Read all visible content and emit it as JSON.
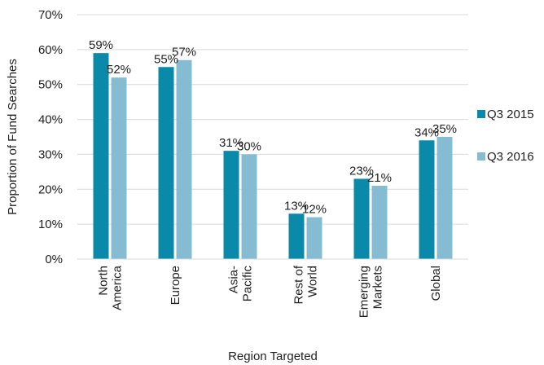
{
  "chart_data": {
    "type": "bar",
    "title": "",
    "xlabel": "Region Targeted",
    "ylabel": "Proportion of Fund Searches",
    "ylim": [
      0,
      70
    ],
    "y_ticks": [
      "0%",
      "10%",
      "20%",
      "30%",
      "40%",
      "50%",
      "60%",
      "70%"
    ],
    "grid": true,
    "legend_position": "right",
    "categories": [
      [
        "North",
        "America"
      ],
      [
        "Europe"
      ],
      [
        "Asia-",
        "Pacific"
      ],
      [
        "Rest of",
        "World"
      ],
      [
        "Emerging",
        "Markets"
      ],
      [
        "Global"
      ]
    ],
    "series": [
      {
        "name": "Q3 2015",
        "color": "#0a8aa8",
        "values": [
          59,
          55,
          31,
          13,
          23,
          34
        ],
        "labels": [
          "59%",
          "55%",
          "31%",
          "13%",
          "23%",
          "34%"
        ]
      },
      {
        "name": "Q3 2016",
        "color": "#86bcd2",
        "values": [
          52,
          57,
          30,
          12,
          21,
          35
        ],
        "labels": [
          "52%",
          "57%",
          "30%",
          "12%",
          "21%",
          "35%"
        ]
      }
    ]
  }
}
